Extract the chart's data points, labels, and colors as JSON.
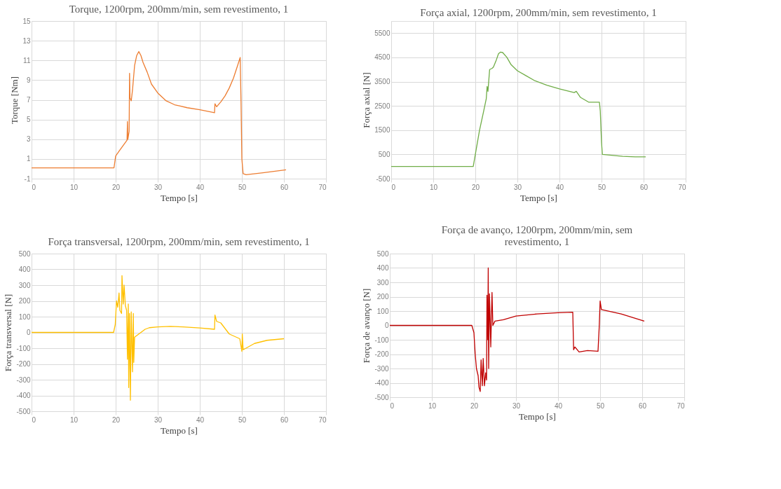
{
  "chart_data": [
    {
      "type": "line",
      "title": "Torque, 1200rpm, 200mm/min, sem revestimento, 1",
      "xlabel": "Tempo [s]",
      "ylabel": "Torque [Nm]",
      "xlim": [
        0,
        70
      ],
      "xticks": [
        0,
        10,
        20,
        30,
        40,
        50,
        60,
        70
      ],
      "ylim": [
        -1,
        15
      ],
      "yticks": [
        -1,
        1,
        3,
        5,
        7,
        9,
        11,
        13,
        15
      ],
      "grid": true,
      "series": [
        {
          "color": "#ed7d31",
          "x": [
            0,
            19.6,
            20,
            21,
            22,
            22.7,
            22.8,
            22.9,
            23.2,
            23.3,
            23.4,
            23.7,
            24,
            24.5,
            25,
            25.5,
            26,
            26.5,
            27.5,
            28.5,
            30,
            32,
            34,
            37,
            40,
            43.5,
            43.6,
            44,
            45,
            46,
            47,
            48,
            49,
            49.6,
            49.8,
            50,
            50.3,
            51,
            55,
            60.5
          ],
          "values": [
            0.1,
            0.1,
            1.3,
            1.9,
            2.5,
            2.9,
            4.8,
            3.0,
            3.8,
            9.7,
            7.2,
            6.9,
            8,
            10.5,
            11.5,
            11.9,
            11.5,
            10.8,
            9.8,
            8.6,
            7.7,
            6.9,
            6.5,
            6.2,
            6.0,
            5.7,
            6.6,
            6.3,
            6.8,
            7.4,
            8.2,
            9.2,
            10.5,
            11.3,
            6.8,
            1.0,
            -0.5,
            -0.6,
            -0.4,
            -0.1
          ]
        }
      ]
    },
    {
      "type": "line",
      "title": "Força axial, 1200rpm, 200mm/min, sem revestimento, 1",
      "xlabel": "Tempo [s]",
      "ylabel": "Força axial [N]",
      "xlim": [
        0,
        70
      ],
      "xticks": [
        0,
        10,
        20,
        30,
        40,
        50,
        60,
        70
      ],
      "ylim": [
        -500,
        6000
      ],
      "yticks": [
        -500,
        500,
        1500,
        2500,
        3500,
        4500,
        5500
      ],
      "grid": true,
      "series": [
        {
          "color": "#70ad47",
          "x": [
            0,
            19.5,
            20,
            21,
            22,
            22.6,
            22.8,
            23,
            23.4,
            24,
            24.3,
            25,
            25.5,
            26,
            26.5,
            27.5,
            28.5,
            30,
            32,
            34,
            37,
            40,
            43.5,
            44,
            45,
            47,
            49.5,
            49.7,
            50,
            50.2,
            55,
            58,
            60.5
          ],
          "values": [
            0,
            0,
            500,
            1500,
            2300,
            2800,
            3300,
            3100,
            4000,
            4050,
            4100,
            4400,
            4650,
            4720,
            4700,
            4500,
            4200,
            3950,
            3750,
            3550,
            3350,
            3200,
            3050,
            3100,
            2850,
            2650,
            2650,
            2300,
            1000,
            500,
            420,
            400,
            400
          ]
        }
      ]
    },
    {
      "type": "line",
      "title": "Força transversal, 1200rpm, 200mm/min, sem revestimento, 1",
      "xlabel": "Tempo [s]",
      "ylabel": "Força transversal [N]",
      "xlim": [
        0,
        70
      ],
      "xticks": [
        0,
        10,
        20,
        30,
        40,
        50,
        60,
        70
      ],
      "ylim": [
        -500,
        500
      ],
      "yticks": [
        -500,
        -400,
        -300,
        -200,
        -100,
        0,
        100,
        200,
        300,
        400,
        500
      ],
      "grid": true,
      "series": [
        {
          "color": "#ffc000",
          "x": [
            0,
            19.5,
            19.9,
            20.2,
            20.5,
            20.8,
            21,
            21.4,
            21.5,
            21.8,
            22,
            22.3,
            22.6,
            22.8,
            23,
            23.1,
            23.3,
            23.5,
            23.7,
            24,
            24.2,
            24.3,
            24.5,
            25,
            26,
            27,
            28,
            30,
            33,
            36,
            40,
            43.5,
            43.6,
            44,
            45,
            47,
            49.5,
            50,
            50.1,
            50.3,
            53,
            56,
            60
          ],
          "values": [
            0,
            0,
            50,
            200,
            160,
            250,
            140,
            120,
            360,
            180,
            300,
            170,
            140,
            -170,
            180,
            -350,
            120,
            -430,
            130,
            -250,
            120,
            -190,
            -30,
            -20,
            0,
            20,
            30,
            35,
            38,
            35,
            28,
            20,
            110,
            70,
            60,
            -10,
            -40,
            -120,
            -10,
            -110,
            -70,
            -50,
            -40
          ]
        }
      ]
    },
    {
      "type": "line",
      "title": "Força de avanço, 1200rpm, 200mm/min, sem\nrevestimento, 1",
      "xlabel": "Tempo [s]",
      "ylabel": "Força de avanço [N]",
      "xlim": [
        0,
        70
      ],
      "xticks": [
        0,
        10,
        20,
        30,
        40,
        50,
        60,
        70
      ],
      "ylim": [
        -500,
        500
      ],
      "yticks": [
        -500,
        -400,
        -300,
        -200,
        -100,
        0,
        100,
        200,
        300,
        400,
        500
      ],
      "grid": true,
      "series": [
        {
          "color": "#c00000",
          "x": [
            0,
            19.5,
            20,
            20.3,
            20.6,
            21,
            21.2,
            21.5,
            21.7,
            22,
            22.2,
            22.5,
            22.8,
            23,
            23.1,
            23.3,
            23.4,
            23.5,
            23.7,
            24,
            24.3,
            24.5,
            25,
            27,
            30,
            35,
            40,
            43.5,
            43.7,
            44,
            45,
            47,
            49.5,
            49.8,
            50,
            50.3,
            55,
            60.5
          ],
          "values": [
            0,
            0,
            -50,
            -200,
            -300,
            -350,
            -430,
            -460,
            -240,
            -420,
            -230,
            -420,
            -330,
            -380,
            210,
            -100,
            400,
            -300,
            220,
            -150,
            230,
            0,
            30,
            40,
            65,
            80,
            88,
            92,
            -170,
            -150,
            -185,
            -175,
            -180,
            0,
            170,
            110,
            80,
            30
          ]
        }
      ]
    }
  ]
}
